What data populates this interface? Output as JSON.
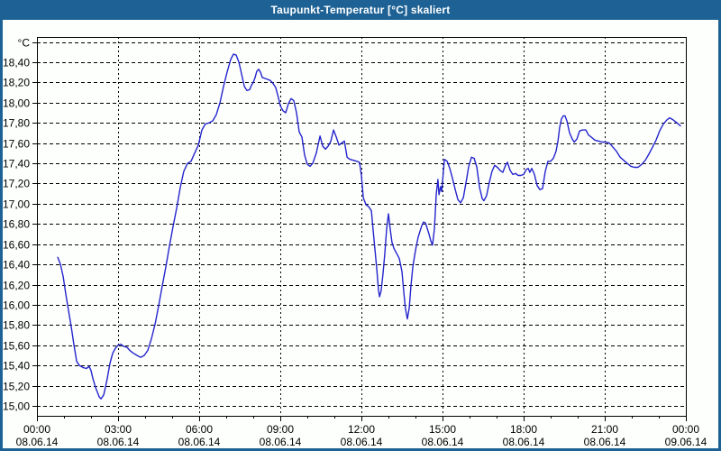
{
  "title": "Taupunkt-Temperatur [°C] skaliert",
  "colors": {
    "frame": "#1E6295",
    "titlebar_text": "#FFFFFF",
    "background": "#FDFFFD",
    "plot_border": "#000000",
    "gridline": "#000000",
    "series_line": "#2424CC"
  },
  "chart_data": {
    "type": "line",
    "title": "Taupunkt-Temperatur [°C] skaliert",
    "ylabel": "°C",
    "xlabel": "",
    "grid": "dashed",
    "legend": "none",
    "y_axis": {
      "min": 14.9,
      "max": 18.65,
      "gridline_step": 0.2,
      "tick_labels": [
        {
          "v": 18.6,
          "label": "°C"
        },
        {
          "v": 18.4,
          "label": "18,40"
        },
        {
          "v": 18.2,
          "label": "18,20"
        },
        {
          "v": 18.0,
          "label": "18,00"
        },
        {
          "v": 17.8,
          "label": "17,80"
        },
        {
          "v": 17.6,
          "label": "17,60"
        },
        {
          "v": 17.4,
          "label": "17,40"
        },
        {
          "v": 17.2,
          "label": "17,20"
        },
        {
          "v": 17.0,
          "label": "17,00"
        },
        {
          "v": 16.8,
          "label": "16,80"
        },
        {
          "v": 16.6,
          "label": "16,60"
        },
        {
          "v": 16.4,
          "label": "16,40"
        },
        {
          "v": 16.2,
          "label": "16,20"
        },
        {
          "v": 16.0,
          "label": "16,00"
        },
        {
          "v": 15.8,
          "label": "15,80"
        },
        {
          "v": 15.6,
          "label": "15,60"
        },
        {
          "v": 15.4,
          "label": "15,40"
        },
        {
          "v": 15.2,
          "label": "15,20"
        },
        {
          "v": 15.0,
          "label": "15,00"
        }
      ]
    },
    "x_axis": {
      "range_hours": [
        0,
        24
      ],
      "minor_tick_every_hours": 1,
      "major_tick_every_hours": 3,
      "ticks": [
        {
          "hour": 0,
          "time": "00:00",
          "date": "08.06.14"
        },
        {
          "hour": 3,
          "time": "03:00",
          "date": "08.06.14"
        },
        {
          "hour": 6,
          "time": "06:00",
          "date": "08.06.14"
        },
        {
          "hour": 9,
          "time": "09:00",
          "date": "08.06.14"
        },
        {
          "hour": 12,
          "time": "12:00",
          "date": "08.06.14"
        },
        {
          "hour": 15,
          "time": "15:00",
          "date": "08.06.14"
        },
        {
          "hour": 18,
          "time": "18:00",
          "date": "08.06.14"
        },
        {
          "hour": 21,
          "time": "21:00",
          "date": "08.06.14"
        },
        {
          "hour": 24,
          "time": "00:00",
          "date": "09.06.14"
        }
      ]
    },
    "series": [
      {
        "name": "Taupunkt-Temperatur skaliert",
        "color": "#2424CC",
        "points": [
          [
            0.77,
            16.47
          ],
          [
            0.87,
            16.4
          ],
          [
            0.97,
            16.28
          ],
          [
            1.07,
            16.1
          ],
          [
            1.17,
            15.94
          ],
          [
            1.27,
            15.78
          ],
          [
            1.37,
            15.6
          ],
          [
            1.47,
            15.44
          ],
          [
            1.57,
            15.4
          ],
          [
            1.7,
            15.38
          ],
          [
            1.83,
            15.37
          ],
          [
            1.93,
            15.39
          ],
          [
            2.0,
            15.35
          ],
          [
            2.07,
            15.27
          ],
          [
            2.17,
            15.18
          ],
          [
            2.3,
            15.09
          ],
          [
            2.37,
            15.07
          ],
          [
            2.47,
            15.11
          ],
          [
            2.53,
            15.18
          ],
          [
            2.6,
            15.27
          ],
          [
            2.7,
            15.42
          ],
          [
            2.8,
            15.52
          ],
          [
            2.9,
            15.57
          ],
          [
            3.0,
            15.6
          ],
          [
            3.1,
            15.61
          ],
          [
            3.2,
            15.59
          ],
          [
            3.33,
            15.58
          ],
          [
            3.43,
            15.55
          ],
          [
            3.57,
            15.52
          ],
          [
            3.7,
            15.5
          ],
          [
            3.83,
            15.48
          ],
          [
            3.97,
            15.5
          ],
          [
            4.1,
            15.55
          ],
          [
            4.23,
            15.66
          ],
          [
            4.37,
            15.81
          ],
          [
            4.5,
            15.99
          ],
          [
            4.63,
            16.18
          ],
          [
            4.77,
            16.38
          ],
          [
            4.9,
            16.58
          ],
          [
            5.03,
            16.77
          ],
          [
            5.17,
            16.96
          ],
          [
            5.3,
            17.16
          ],
          [
            5.43,
            17.32
          ],
          [
            5.57,
            17.4
          ],
          [
            5.7,
            17.42
          ],
          [
            5.83,
            17.5
          ],
          [
            5.97,
            17.58
          ],
          [
            6.1,
            17.73
          ],
          [
            6.23,
            17.79
          ],
          [
            6.37,
            17.8
          ],
          [
            6.5,
            17.82
          ],
          [
            6.63,
            17.88
          ],
          [
            6.77,
            18.0
          ],
          [
            6.9,
            18.16
          ],
          [
            7.03,
            18.3
          ],
          [
            7.17,
            18.43
          ],
          [
            7.27,
            18.48
          ],
          [
            7.37,
            18.47
          ],
          [
            7.47,
            18.4
          ],
          [
            7.57,
            18.28
          ],
          [
            7.67,
            18.16
          ],
          [
            7.77,
            18.12
          ],
          [
            7.87,
            18.13
          ],
          [
            7.93,
            18.17
          ],
          [
            8.0,
            18.2
          ],
          [
            8.07,
            18.25
          ],
          [
            8.13,
            18.31
          ],
          [
            8.2,
            18.33
          ],
          [
            8.27,
            18.3
          ],
          [
            8.33,
            18.25
          ],
          [
            8.43,
            18.24
          ],
          [
            8.53,
            18.23
          ],
          [
            8.63,
            18.22
          ],
          [
            8.73,
            18.19
          ],
          [
            8.83,
            18.15
          ],
          [
            8.93,
            18.05
          ],
          [
            9.0,
            17.97
          ],
          [
            9.1,
            17.92
          ],
          [
            9.2,
            17.9
          ],
          [
            9.3,
            17.99
          ],
          [
            9.4,
            18.04
          ],
          [
            9.5,
            18.02
          ],
          [
            9.6,
            17.9
          ],
          [
            9.7,
            17.71
          ],
          [
            9.8,
            17.66
          ],
          [
            9.9,
            17.48
          ],
          [
            10.0,
            17.39
          ],
          [
            10.1,
            17.37
          ],
          [
            10.2,
            17.4
          ],
          [
            10.33,
            17.5
          ],
          [
            10.47,
            17.67
          ],
          [
            10.57,
            17.57
          ],
          [
            10.67,
            17.54
          ],
          [
            10.77,
            17.57
          ],
          [
            10.87,
            17.62
          ],
          [
            10.97,
            17.73
          ],
          [
            11.07,
            17.66
          ],
          [
            11.17,
            17.58
          ],
          [
            11.27,
            17.6
          ],
          [
            11.37,
            17.62
          ],
          [
            11.47,
            17.46
          ],
          [
            11.57,
            17.44
          ],
          [
            11.7,
            17.43
          ],
          [
            11.83,
            17.42
          ],
          [
            11.93,
            17.41
          ],
          [
            12.0,
            17.28
          ],
          [
            12.07,
            17.06
          ],
          [
            12.17,
            16.99
          ],
          [
            12.27,
            16.97
          ],
          [
            12.37,
            16.93
          ],
          [
            12.43,
            16.75
          ],
          [
            12.5,
            16.55
          ],
          [
            12.57,
            16.35
          ],
          [
            12.63,
            16.15
          ],
          [
            12.67,
            16.08
          ],
          [
            12.73,
            16.14
          ],
          [
            12.8,
            16.31
          ],
          [
            12.87,
            16.52
          ],
          [
            12.93,
            16.74
          ],
          [
            13.0,
            16.9
          ],
          [
            13.07,
            16.74
          ],
          [
            13.13,
            16.62
          ],
          [
            13.2,
            16.56
          ],
          [
            13.3,
            16.51
          ],
          [
            13.4,
            16.46
          ],
          [
            13.5,
            16.33
          ],
          [
            13.57,
            16.12
          ],
          [
            13.63,
            15.96
          ],
          [
            13.7,
            15.86
          ],
          [
            13.77,
            15.97
          ],
          [
            13.83,
            16.18
          ],
          [
            13.9,
            16.37
          ],
          [
            13.97,
            16.49
          ],
          [
            14.03,
            16.58
          ],
          [
            14.1,
            16.67
          ],
          [
            14.17,
            16.73
          ],
          [
            14.23,
            16.78
          ],
          [
            14.3,
            16.82
          ],
          [
            14.37,
            16.81
          ],
          [
            14.43,
            16.76
          ],
          [
            14.5,
            16.7
          ],
          [
            14.57,
            16.63
          ],
          [
            14.63,
            16.59
          ],
          [
            14.7,
            16.75
          ],
          [
            14.77,
            17.1
          ],
          [
            14.83,
            17.24
          ],
          [
            14.87,
            17.09
          ],
          [
            14.93,
            17.17
          ],
          [
            14.97,
            17.12
          ],
          [
            15.07,
            17.44
          ],
          [
            15.17,
            17.42
          ],
          [
            15.27,
            17.35
          ],
          [
            15.37,
            17.25
          ],
          [
            15.47,
            17.14
          ],
          [
            15.57,
            17.04
          ],
          [
            15.67,
            17.01
          ],
          [
            15.77,
            17.06
          ],
          [
            15.87,
            17.21
          ],
          [
            15.97,
            17.37
          ],
          [
            16.07,
            17.46
          ],
          [
            16.17,
            17.45
          ],
          [
            16.27,
            17.36
          ],
          [
            16.37,
            17.16
          ],
          [
            16.47,
            17.05
          ],
          [
            16.53,
            17.03
          ],
          [
            16.63,
            17.08
          ],
          [
            16.73,
            17.21
          ],
          [
            16.83,
            17.32
          ],
          [
            16.93,
            17.38
          ],
          [
            17.03,
            17.36
          ],
          [
            17.13,
            17.33
          ],
          [
            17.23,
            17.31
          ],
          [
            17.33,
            17.38
          ],
          [
            17.4,
            17.41
          ],
          [
            17.5,
            17.33
          ],
          [
            17.6,
            17.29
          ],
          [
            17.7,
            17.3
          ],
          [
            17.8,
            17.28
          ],
          [
            17.9,
            17.28
          ],
          [
            18.0,
            17.29
          ],
          [
            18.1,
            17.34
          ],
          [
            18.17,
            17.35
          ],
          [
            18.23,
            17.31
          ],
          [
            18.3,
            17.35
          ],
          [
            18.4,
            17.29
          ],
          [
            18.5,
            17.18
          ],
          [
            18.6,
            17.14
          ],
          [
            18.7,
            17.15
          ],
          [
            18.8,
            17.32
          ],
          [
            18.9,
            17.42
          ],
          [
            19.0,
            17.42
          ],
          [
            19.1,
            17.45
          ],
          [
            19.2,
            17.52
          ],
          [
            19.27,
            17.62
          ],
          [
            19.33,
            17.75
          ],
          [
            19.4,
            17.84
          ],
          [
            19.47,
            17.87
          ],
          [
            19.53,
            17.87
          ],
          [
            19.6,
            17.82
          ],
          [
            19.7,
            17.7
          ],
          [
            19.8,
            17.64
          ],
          [
            19.87,
            17.61
          ],
          [
            19.97,
            17.64
          ],
          [
            20.07,
            17.72
          ],
          [
            20.17,
            17.73
          ],
          [
            20.3,
            17.73
          ],
          [
            20.4,
            17.68
          ],
          [
            20.5,
            17.66
          ],
          [
            20.63,
            17.63
          ],
          [
            20.77,
            17.62
          ],
          [
            20.9,
            17.61
          ],
          [
            21.03,
            17.61
          ],
          [
            21.17,
            17.6
          ],
          [
            21.3,
            17.56
          ],
          [
            21.43,
            17.52
          ],
          [
            21.57,
            17.46
          ],
          [
            21.7,
            17.43
          ],
          [
            21.83,
            17.4
          ],
          [
            21.97,
            17.37
          ],
          [
            22.1,
            17.36
          ],
          [
            22.23,
            17.36
          ],
          [
            22.37,
            17.39
          ],
          [
            22.5,
            17.43
          ],
          [
            22.63,
            17.49
          ],
          [
            22.77,
            17.56
          ],
          [
            22.9,
            17.63
          ],
          [
            23.03,
            17.72
          ],
          [
            23.17,
            17.79
          ],
          [
            23.3,
            17.83
          ],
          [
            23.4,
            17.85
          ],
          [
            23.53,
            17.83
          ],
          [
            23.67,
            17.8
          ],
          [
            23.8,
            17.77
          ]
        ]
      }
    ]
  }
}
